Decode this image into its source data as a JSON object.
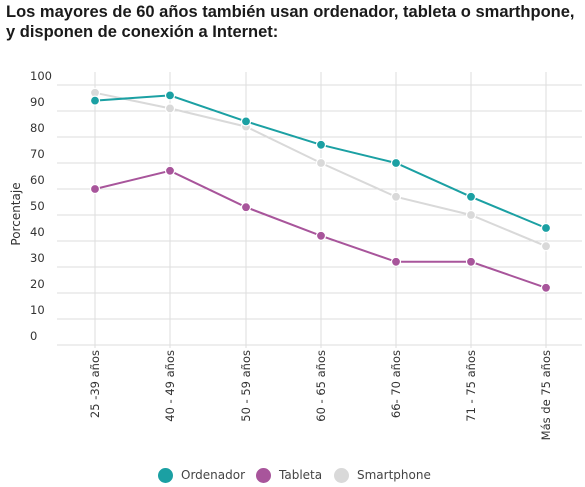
{
  "title_lines": [
    "Los mayores de 60 años también usan ordenador, tableta o smarthpone,",
    "y disponen de conexión a Internet:"
  ],
  "chart_data": {
    "type": "line",
    "title": "Los mayores de 60 años también usan ordenador, tableta o smarthpone, y disponen de conexión a Internet:",
    "xlabel": "",
    "ylabel": "Porcentaje",
    "ylim": [
      0,
      100
    ],
    "yticks": [
      0,
      10,
      20,
      30,
      40,
      50,
      60,
      70,
      80,
      90,
      100
    ],
    "categories": [
      "25 -39 años",
      "40 - 49 años",
      "50 - 59 años",
      "60 - 65 años",
      "66- 70 años",
      "71 - 75 años",
      "Más de 75 años"
    ],
    "grid": true,
    "legend_position": "bottom",
    "series": [
      {
        "name": "Ordenador",
        "color": "#1ba0a3",
        "values": [
          94,
          96,
          86,
          77,
          70,
          57,
          45
        ]
      },
      {
        "name": "Tableta",
        "color": "#a8559b",
        "values": [
          60,
          67,
          53,
          42,
          32,
          32,
          22
        ]
      },
      {
        "name": "Smartphone",
        "color": "#d9d9d9",
        "values": [
          97,
          91,
          84,
          70,
          57,
          50,
          38
        ]
      }
    ]
  }
}
